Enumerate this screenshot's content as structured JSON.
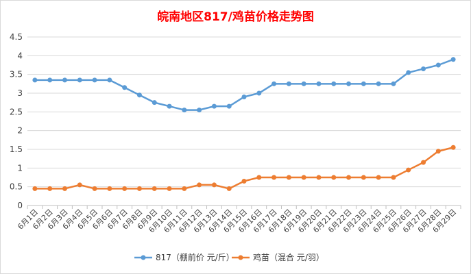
{
  "chart_data": {
    "type": "line",
    "title": "皖南地区817/鸡苗价格走势图",
    "xlabel": "",
    "ylabel": "",
    "ylim": [
      0,
      4.5
    ],
    "yticks": [
      "0",
      "0.5",
      "1",
      "1.5",
      "2",
      "2.5",
      "3",
      "3.5",
      "4",
      "4.5"
    ],
    "grid": true,
    "legend": "bottom",
    "categories": [
      "6月1日",
      "6月2日",
      "6月3日",
      "6月4日",
      "6月5日",
      "6月6日",
      "6月7日",
      "6月8日",
      "6月9日",
      "6月10日",
      "6月11日",
      "6月12日",
      "6月13日",
      "6月14日",
      "6月15日",
      "6月16日",
      "6月17日",
      "6月18日",
      "6月19日",
      "6月20日",
      "6月21日",
      "6月22日",
      "6月23日",
      "6月24日",
      "6月25日",
      "6月26日",
      "6月27日",
      "6月28日",
      "6月29日"
    ],
    "series": [
      {
        "name": "817（棚前价 元/斤）",
        "color": "#5b9bd5",
        "values": [
          3.35,
          3.35,
          3.35,
          3.35,
          3.35,
          3.35,
          3.15,
          2.95,
          2.75,
          2.65,
          2.55,
          2.55,
          2.65,
          2.65,
          2.9,
          3.0,
          3.25,
          3.25,
          3.25,
          3.25,
          3.25,
          3.25,
          3.25,
          3.25,
          3.25,
          3.55,
          3.65,
          3.75,
          3.9
        ]
      },
      {
        "name": "鸡苗（混合 元/羽）",
        "color": "#ed7d31",
        "values": [
          0.45,
          0.45,
          0.45,
          0.55,
          0.45,
          0.45,
          0.45,
          0.45,
          0.45,
          0.45,
          0.45,
          0.55,
          0.55,
          0.45,
          0.65,
          0.75,
          0.75,
          0.75,
          0.75,
          0.75,
          0.75,
          0.75,
          0.75,
          0.75,
          0.75,
          0.95,
          1.15,
          1.45,
          1.55
        ]
      }
    ]
  }
}
